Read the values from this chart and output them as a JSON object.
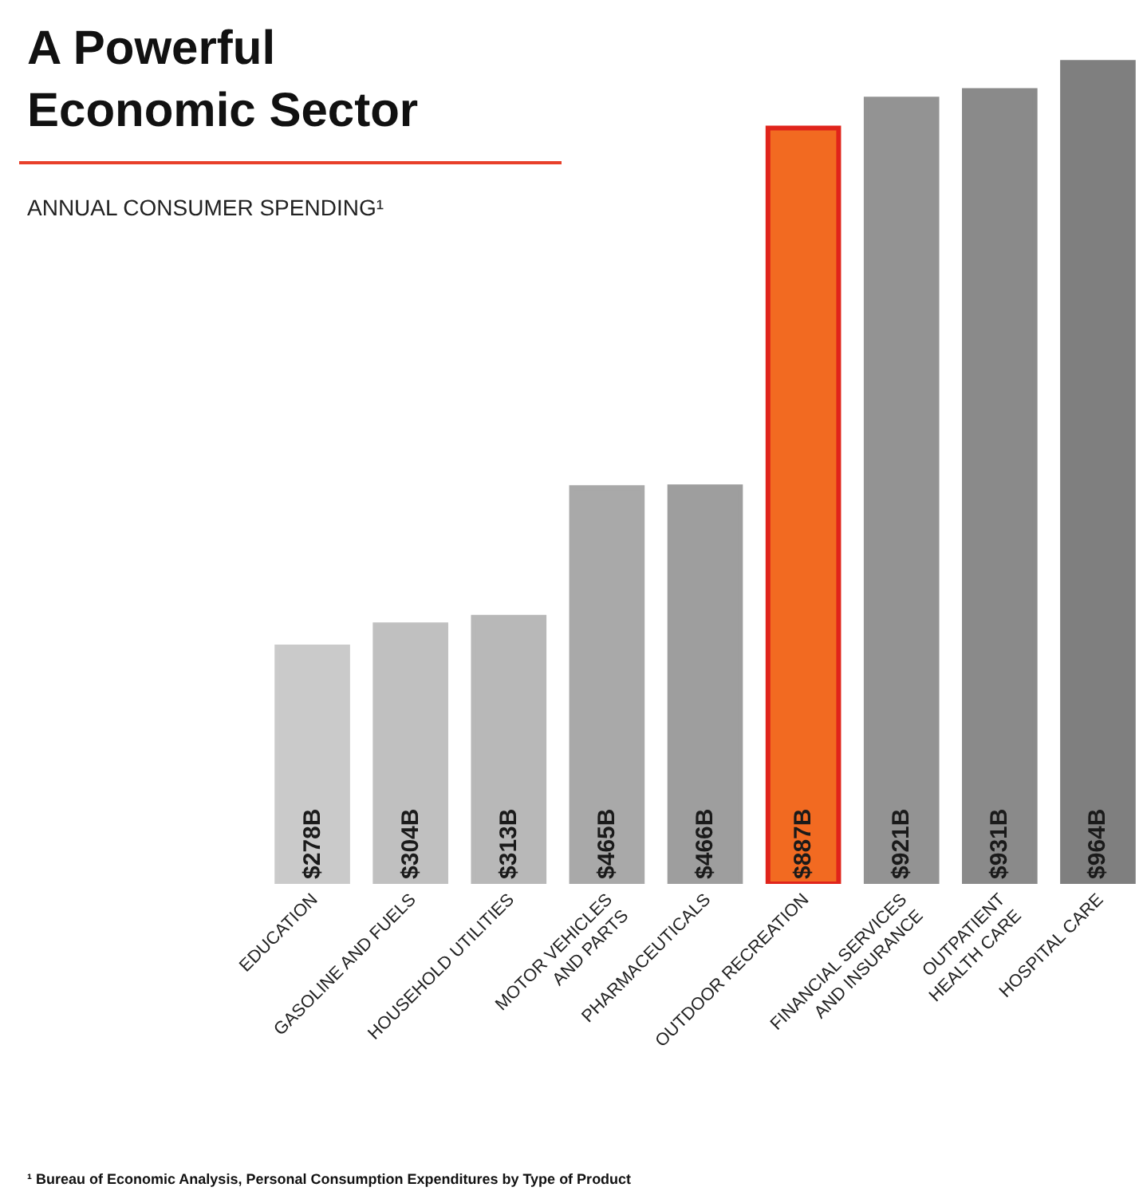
{
  "chart_data": {
    "type": "bar",
    "title": "A Powerful Economic Sector",
    "subtitle": "ANNUAL CONSUMER SPENDING¹",
    "categories": [
      "EDUCATION",
      "GASOLINE AND FUELS",
      "HOUSEHOLD UTILITIES",
      "MOTOR VEHICLES AND PARTS",
      "PHARMACEUTICALS",
      "OUTDOOR RECREATION",
      "FINANCIAL SERVICES AND INSURANCE",
      "OUTPATIENT HEALTH CARE",
      "HOSPITAL CARE"
    ],
    "values": [
      278,
      304,
      313,
      465,
      466,
      887,
      921,
      931,
      964
    ],
    "value_labels": [
      "$278B",
      "$304B",
      "$313B",
      "$465B",
      "$466B",
      "$887B",
      "$921B",
      "$931B",
      "$964B"
    ],
    "colors": [
      "#cacaca",
      "#c0c0c0",
      "#b8b8b8",
      "#a9a9a9",
      "#9e9e9e",
      "#f26a21",
      "#939393",
      "#8a8a8a",
      "#7f7f7f"
    ],
    "annotations": [
      "¹ Bureau of Economic Analysis, Personal Consumption Expenditures by Type of Product"
    ]
  }
}
